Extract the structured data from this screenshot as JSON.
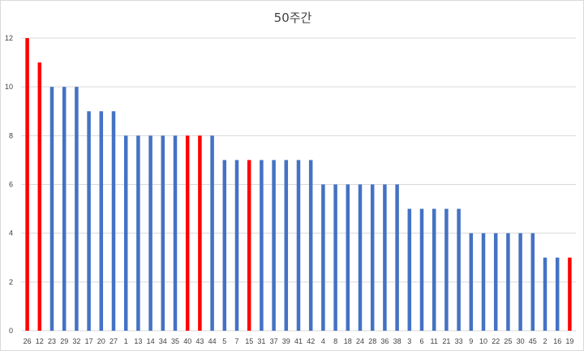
{
  "chart_data": {
    "type": "bar",
    "title": "50주간",
    "xlabel": "",
    "ylabel": "",
    "ylim": [
      0,
      12
    ],
    "yticks": [
      0,
      2,
      4,
      6,
      8,
      10,
      12
    ],
    "grid": true,
    "legend": "none",
    "colors": {
      "default": "#4472c4",
      "highlight": "#ff0000",
      "grid": "#d9d9d9"
    },
    "categories": [
      "26",
      "12",
      "23",
      "29",
      "32",
      "17",
      "20",
      "27",
      "1",
      "13",
      "14",
      "34",
      "35",
      "40",
      "43",
      "44",
      "5",
      "7",
      "15",
      "31",
      "37",
      "39",
      "41",
      "42",
      "4",
      "8",
      "18",
      "24",
      "28",
      "36",
      "38",
      "3",
      "6",
      "11",
      "21",
      "33",
      "9",
      "10",
      "22",
      "25",
      "30",
      "45",
      "2",
      "16",
      "19"
    ],
    "values": [
      12,
      11,
      10,
      10,
      10,
      9,
      9,
      9,
      8,
      8,
      8,
      8,
      8,
      8,
      8,
      8,
      7,
      7,
      7,
      7,
      7,
      7,
      7,
      7,
      6,
      6,
      6,
      6,
      6,
      6,
      6,
      5,
      5,
      5,
      5,
      5,
      4,
      4,
      4,
      4,
      4,
      4,
      3,
      3,
      3
    ],
    "highlighted": [
      "26",
      "12",
      "40",
      "43",
      "15",
      "19"
    ]
  }
}
